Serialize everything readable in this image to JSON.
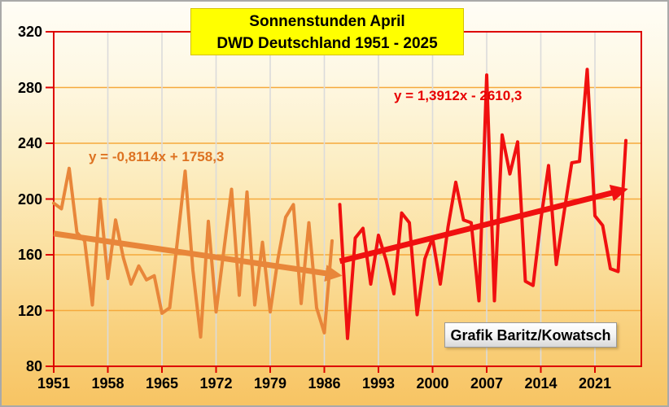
{
  "title": {
    "line1": "Sonnenstunden April",
    "line2": "DWD Deutschland 1951 - 2025",
    "bg": "#ffff00",
    "text_color": "#000000"
  },
  "equations": {
    "orange": "y = -0,8114x + 1758,3",
    "red": "y = 1,3912x - 2610,3"
  },
  "credit": "Grafik Baritz/Kowatsch",
  "colors": {
    "orange_series": "#e8863a",
    "orange_text": "#dd7221",
    "red_series": "#f01010",
    "red_text": "#e80000",
    "axis_frame": "#dd0000",
    "grid_horizontal": "#f5a93c",
    "grid_vertical": "#dbdbdb",
    "title_bg": "#ffff00",
    "credit_bg": "#f2f2f2"
  },
  "chart_data": {
    "type": "line",
    "title": "Sonnenstunden April DWD Deutschland 1951 - 2025",
    "xlabel": "",
    "ylabel": "",
    "xlim": [
      1951,
      2027
    ],
    "ylim": [
      80,
      320
    ],
    "xticks": [
      1951,
      1958,
      1965,
      1972,
      1979,
      1986,
      1993,
      2000,
      2007,
      2014,
      2021
    ],
    "yticks": [
      80,
      120,
      160,
      200,
      240,
      280,
      320
    ],
    "grid": true,
    "legend_position": "none",
    "series": [
      {
        "name": "Sonnenstunden April 1951-1987",
        "color": "#e8863a",
        "start_year": 1951,
        "values": [
          197,
          193,
          222,
          176,
          170,
          124,
          200,
          143,
          185,
          158,
          139,
          152,
          142,
          145,
          118,
          122,
          170,
          220,
          149,
          101,
          184,
          119,
          163,
          207,
          131,
          205,
          124,
          169,
          119,
          157,
          187,
          196,
          125,
          183,
          122,
          104,
          170
        ],
        "trend": {
          "label": "y = -0,8114x + 1758,3",
          "slope": -0.8114,
          "intercept": 1758.3,
          "x_from": 1951,
          "x_to": 1986.3
        }
      },
      {
        "name": "Sonnenstunden April 1988-2025",
        "color": "#f01010",
        "start_year": 1988,
        "values": [
          196,
          100,
          172,
          179,
          139,
          174,
          156,
          132,
          190,
          183,
          117,
          157,
          172,
          139,
          180,
          212,
          185,
          183,
          127,
          289,
          127,
          246,
          218,
          241,
          141,
          138,
          185,
          224,
          153,
          190,
          226,
          227,
          293,
          188,
          181,
          150,
          148,
          242
        ],
        "trend": {
          "label": "y = 1,3912x - 2610,3",
          "slope": 1.3912,
          "intercept": -2610.3,
          "x_from": 1988,
          "x_to": 2023.3
        }
      }
    ]
  }
}
